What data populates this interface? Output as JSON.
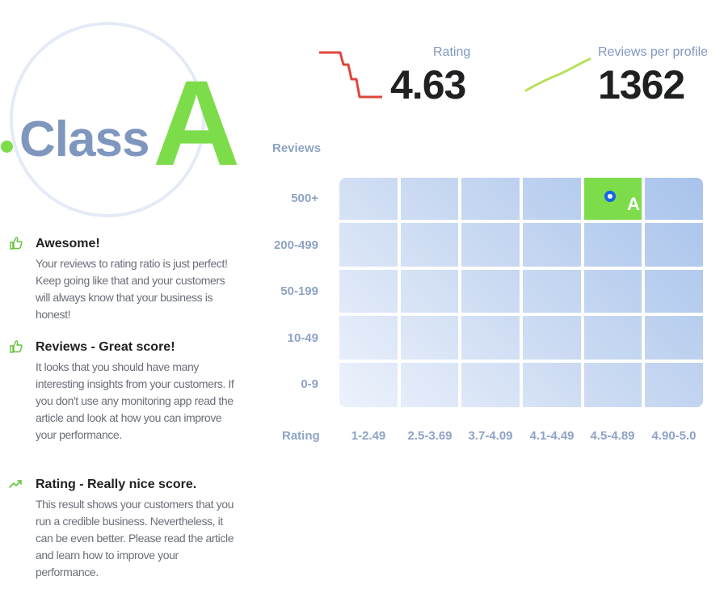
{
  "badge": {
    "word": "Class",
    "grade": "A",
    "accent_color": "#7ddc4a",
    "word_color": "#7f97be"
  },
  "feedback": [
    {
      "icon": "thumbs-up-icon",
      "title": "Awesome!",
      "text": "Your reviews to rating ratio is just perfect! Keep going like that and your customers will always know that your business is honest!"
    },
    {
      "icon": "thumbs-up-icon",
      "title": "Reviews - Great score!",
      "text": "It looks that you should have many interesting insights from your customers. If you don't use any monitoring app read the article and look at how you can improve your performance."
    },
    {
      "icon": "trending-up-icon",
      "title": "Rating - Really nice score.",
      "text": "This result shows your customers that you run a credible business. Nevertheless, it can be even better. Please read the article and learn how to improve your performance."
    }
  ],
  "stats": {
    "rating": {
      "label": "Rating",
      "value": "4.63",
      "trend_icon": "falling-line-icon",
      "trend_color": "#e0463a"
    },
    "reviews": {
      "label": "Reviews per profile",
      "value": "1362",
      "trend_icon": "rising-line-icon",
      "trend_color": "#b6e05a"
    }
  },
  "matrix": {
    "y_axis_label": "Reviews",
    "x_axis_label": "Rating",
    "rows": [
      "500+",
      "200-499",
      "50-199",
      "10-49",
      "0-9"
    ],
    "columns": [
      "1-2.49",
      "2.5-3.69",
      "3.7-4.09",
      "4.1-4.49",
      "4.5-4.89",
      "4.90-5.0"
    ],
    "active_cell": {
      "row": "500+",
      "column": "4.5-4.89",
      "grade": "A"
    },
    "marker_color": "#1463e8"
  }
}
